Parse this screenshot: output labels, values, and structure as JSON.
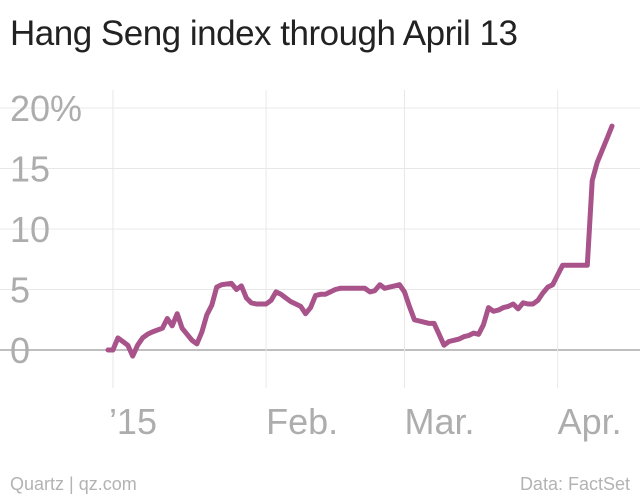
{
  "title": "Hang Seng index through April 13",
  "footer": {
    "source_left": "Quartz | qz.com",
    "source_right": "Data: FactSet"
  },
  "colors": {
    "line": "#a8538a",
    "grid": "#e8e8e8",
    "baseline": "#999999",
    "tick_text": "#adadad"
  },
  "chart_data": {
    "type": "line",
    "title": "Hang Seng index through April 13",
    "xlabel": "",
    "ylabel": "",
    "ylim": [
      -3,
      22
    ],
    "grid": true,
    "legend": "none",
    "x_tick_labels": [
      {
        "label": "’15",
        "x": 1
      },
      {
        "label": "Feb.",
        "x": 32
      },
      {
        "label": "Mar.",
        "x": 60
      },
      {
        "label": "Apr.",
        "x": 91
      }
    ],
    "y_ticks": [
      {
        "value": 0,
        "label": "0"
      },
      {
        "value": 5,
        "label": "5"
      },
      {
        "value": 10,
        "label": "10"
      },
      {
        "value": 15,
        "label": "15"
      },
      {
        "value": 20,
        "label": "20%"
      }
    ],
    "series": [
      {
        "x": [
          0,
          1,
          2,
          4,
          5,
          6,
          7,
          8,
          9,
          11,
          12,
          13,
          14,
          15,
          16,
          17,
          18,
          19,
          20,
          21,
          22,
          23,
          25,
          26,
          27,
          28,
          29,
          30,
          32,
          33,
          34,
          35,
          36,
          37,
          38,
          39,
          40,
          41,
          42,
          43,
          44,
          45,
          46,
          47,
          48,
          49,
          50,
          51,
          52,
          53,
          54,
          55,
          56,
          57,
          58,
          59,
          60,
          61,
          62,
          63,
          64,
          65,
          66,
          67,
          68,
          69,
          70,
          71,
          72,
          73,
          74,
          75,
          76,
          77,
          78,
          79,
          80,
          81,
          82,
          83,
          84,
          85,
          86,
          87,
          88,
          89,
          90,
          91,
          92,
          93,
          94,
          95,
          96,
          97,
          98,
          99,
          100,
          101,
          102
        ],
        "values": [
          0,
          0,
          1.0,
          0.4,
          -0.5,
          0.4,
          1.0,
          1.3,
          1.5,
          1.8,
          2.6,
          2.0,
          3.0,
          1.8,
          1.3,
          0.8,
          0.5,
          1.5,
          2.9,
          3.7,
          5.2,
          5.4,
          5.5,
          5.0,
          5.3,
          4.3,
          3.9,
          3.8,
          3.8,
          4.1,
          4.8,
          4.6,
          4.3,
          4.0,
          3.8,
          3.6,
          3.0,
          3.5,
          4.5,
          4.6,
          4.6,
          4.8,
          5.0,
          5.1,
          5.1,
          5.1,
          5.1,
          5.1,
          5.1,
          4.8,
          4.9,
          5.4,
          5.1,
          5.2,
          5.3,
          5.4,
          4.8,
          3.6,
          2.5,
          2.4,
          2.3,
          2.2,
          2.2,
          1.3,
          0.4,
          0.7,
          0.8,
          0.9,
          1.1,
          1.2,
          1.4,
          1.3,
          2.1,
          3.5,
          3.2,
          3.3,
          3.5,
          3.6,
          3.8,
          3.4,
          3.9,
          3.8,
          3.8,
          4.1,
          4.7,
          5.2,
          5.4,
          6.2,
          7.0,
          7.0,
          7.0,
          7.0,
          7.0,
          7.0,
          14.0,
          15.5,
          16.5,
          17.5,
          18.5
        ]
      }
    ]
  }
}
